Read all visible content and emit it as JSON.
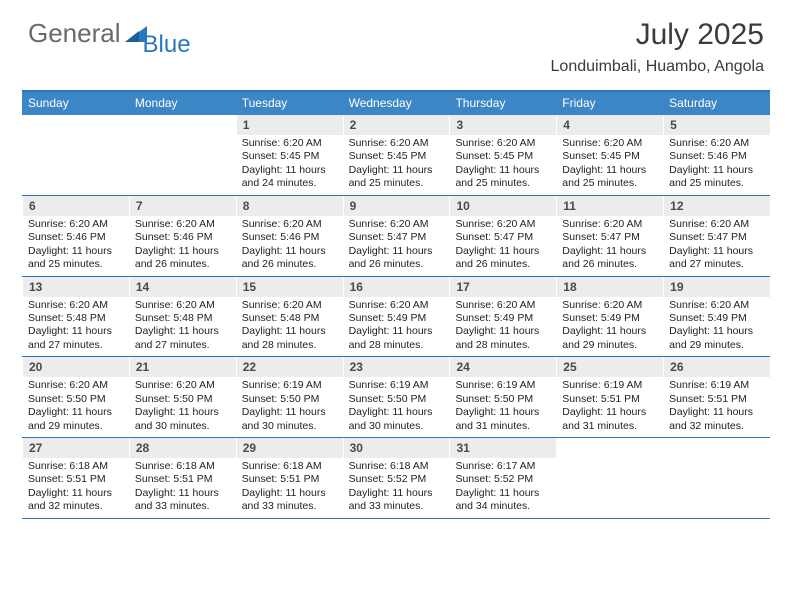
{
  "brand": {
    "general": "General",
    "blue": "Blue"
  },
  "title": "July 2025",
  "location": "Londuimbali, Huambo, Angola",
  "colors": {
    "accent": "#2a77bd",
    "header_bg": "#3d86c6",
    "daynum_bg": "#ececec",
    "text": "#222222",
    "title_text": "#3b3b3b",
    "logo_gray": "#6a6a6a"
  },
  "dow": [
    "Sunday",
    "Monday",
    "Tuesday",
    "Wednesday",
    "Thursday",
    "Friday",
    "Saturday"
  ],
  "weeks": [
    [
      {
        "n": "",
        "sr": "",
        "ss": "",
        "dl": ""
      },
      {
        "n": "",
        "sr": "",
        "ss": "",
        "dl": ""
      },
      {
        "n": "1",
        "sr": "Sunrise: 6:20 AM",
        "ss": "Sunset: 5:45 PM",
        "dl": "Daylight: 11 hours and 24 minutes."
      },
      {
        "n": "2",
        "sr": "Sunrise: 6:20 AM",
        "ss": "Sunset: 5:45 PM",
        "dl": "Daylight: 11 hours and 25 minutes."
      },
      {
        "n": "3",
        "sr": "Sunrise: 6:20 AM",
        "ss": "Sunset: 5:45 PM",
        "dl": "Daylight: 11 hours and 25 minutes."
      },
      {
        "n": "4",
        "sr": "Sunrise: 6:20 AM",
        "ss": "Sunset: 5:45 PM",
        "dl": "Daylight: 11 hours and 25 minutes."
      },
      {
        "n": "5",
        "sr": "Sunrise: 6:20 AM",
        "ss": "Sunset: 5:46 PM",
        "dl": "Daylight: 11 hours and 25 minutes."
      }
    ],
    [
      {
        "n": "6",
        "sr": "Sunrise: 6:20 AM",
        "ss": "Sunset: 5:46 PM",
        "dl": "Daylight: 11 hours and 25 minutes."
      },
      {
        "n": "7",
        "sr": "Sunrise: 6:20 AM",
        "ss": "Sunset: 5:46 PM",
        "dl": "Daylight: 11 hours and 26 minutes."
      },
      {
        "n": "8",
        "sr": "Sunrise: 6:20 AM",
        "ss": "Sunset: 5:46 PM",
        "dl": "Daylight: 11 hours and 26 minutes."
      },
      {
        "n": "9",
        "sr": "Sunrise: 6:20 AM",
        "ss": "Sunset: 5:47 PM",
        "dl": "Daylight: 11 hours and 26 minutes."
      },
      {
        "n": "10",
        "sr": "Sunrise: 6:20 AM",
        "ss": "Sunset: 5:47 PM",
        "dl": "Daylight: 11 hours and 26 minutes."
      },
      {
        "n": "11",
        "sr": "Sunrise: 6:20 AM",
        "ss": "Sunset: 5:47 PM",
        "dl": "Daylight: 11 hours and 26 minutes."
      },
      {
        "n": "12",
        "sr": "Sunrise: 6:20 AM",
        "ss": "Sunset: 5:47 PM",
        "dl": "Daylight: 11 hours and 27 minutes."
      }
    ],
    [
      {
        "n": "13",
        "sr": "Sunrise: 6:20 AM",
        "ss": "Sunset: 5:48 PM",
        "dl": "Daylight: 11 hours and 27 minutes."
      },
      {
        "n": "14",
        "sr": "Sunrise: 6:20 AM",
        "ss": "Sunset: 5:48 PM",
        "dl": "Daylight: 11 hours and 27 minutes."
      },
      {
        "n": "15",
        "sr": "Sunrise: 6:20 AM",
        "ss": "Sunset: 5:48 PM",
        "dl": "Daylight: 11 hours and 28 minutes."
      },
      {
        "n": "16",
        "sr": "Sunrise: 6:20 AM",
        "ss": "Sunset: 5:49 PM",
        "dl": "Daylight: 11 hours and 28 minutes."
      },
      {
        "n": "17",
        "sr": "Sunrise: 6:20 AM",
        "ss": "Sunset: 5:49 PM",
        "dl": "Daylight: 11 hours and 28 minutes."
      },
      {
        "n": "18",
        "sr": "Sunrise: 6:20 AM",
        "ss": "Sunset: 5:49 PM",
        "dl": "Daylight: 11 hours and 29 minutes."
      },
      {
        "n": "19",
        "sr": "Sunrise: 6:20 AM",
        "ss": "Sunset: 5:49 PM",
        "dl": "Daylight: 11 hours and 29 minutes."
      }
    ],
    [
      {
        "n": "20",
        "sr": "Sunrise: 6:20 AM",
        "ss": "Sunset: 5:50 PM",
        "dl": "Daylight: 11 hours and 29 minutes."
      },
      {
        "n": "21",
        "sr": "Sunrise: 6:20 AM",
        "ss": "Sunset: 5:50 PM",
        "dl": "Daylight: 11 hours and 30 minutes."
      },
      {
        "n": "22",
        "sr": "Sunrise: 6:19 AM",
        "ss": "Sunset: 5:50 PM",
        "dl": "Daylight: 11 hours and 30 minutes."
      },
      {
        "n": "23",
        "sr": "Sunrise: 6:19 AM",
        "ss": "Sunset: 5:50 PM",
        "dl": "Daylight: 11 hours and 30 minutes."
      },
      {
        "n": "24",
        "sr": "Sunrise: 6:19 AM",
        "ss": "Sunset: 5:50 PM",
        "dl": "Daylight: 11 hours and 31 minutes."
      },
      {
        "n": "25",
        "sr": "Sunrise: 6:19 AM",
        "ss": "Sunset: 5:51 PM",
        "dl": "Daylight: 11 hours and 31 minutes."
      },
      {
        "n": "26",
        "sr": "Sunrise: 6:19 AM",
        "ss": "Sunset: 5:51 PM",
        "dl": "Daylight: 11 hours and 32 minutes."
      }
    ],
    [
      {
        "n": "27",
        "sr": "Sunrise: 6:18 AM",
        "ss": "Sunset: 5:51 PM",
        "dl": "Daylight: 11 hours and 32 minutes."
      },
      {
        "n": "28",
        "sr": "Sunrise: 6:18 AM",
        "ss": "Sunset: 5:51 PM",
        "dl": "Daylight: 11 hours and 33 minutes."
      },
      {
        "n": "29",
        "sr": "Sunrise: 6:18 AM",
        "ss": "Sunset: 5:51 PM",
        "dl": "Daylight: 11 hours and 33 minutes."
      },
      {
        "n": "30",
        "sr": "Sunrise: 6:18 AM",
        "ss": "Sunset: 5:52 PM",
        "dl": "Daylight: 11 hours and 33 minutes."
      },
      {
        "n": "31",
        "sr": "Sunrise: 6:17 AM",
        "ss": "Sunset: 5:52 PM",
        "dl": "Daylight: 11 hours and 34 minutes."
      },
      {
        "n": "",
        "sr": "",
        "ss": "",
        "dl": ""
      },
      {
        "n": "",
        "sr": "",
        "ss": "",
        "dl": ""
      }
    ]
  ]
}
